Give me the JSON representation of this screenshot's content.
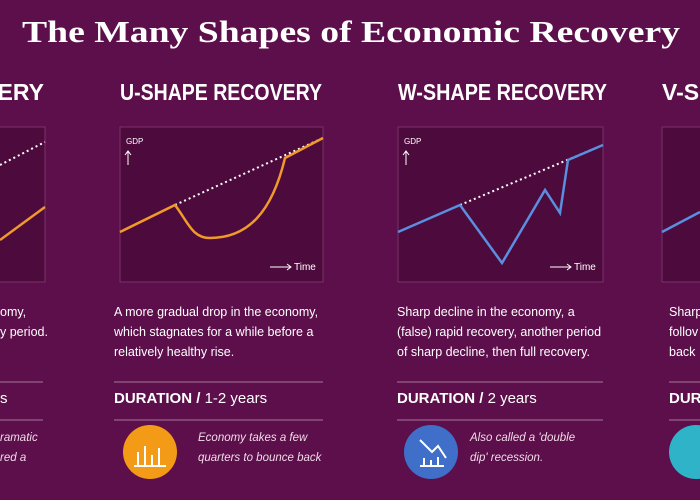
{
  "title": "The Many Shapes of Economic Recovery",
  "cards": [
    {
      "heading": "VERY",
      "description": [
        "omy,",
        "y period."
      ],
      "duration": "s",
      "note": [
        "ramatic",
        "red a"
      ]
    },
    {
      "heading": "U-SHAPE RECOVERY",
      "gdp": "GDP",
      "time": "Time",
      "description": [
        "A more gradual drop in the economy,",
        "which stagnates for a while before a",
        "relatively healthy rise."
      ],
      "duration_label": "DURATION /",
      "duration": "1-2 years",
      "note": [
        "Economy takes a few",
        "quarters to bounce back"
      ]
    },
    {
      "heading": "W-SHAPE RECOVERY",
      "gdp": "GDP",
      "time": "Time",
      "description": [
        "Sharp decline in the economy, a",
        "(false) rapid recovery, another period",
        "of sharp decline, then full recovery."
      ],
      "duration_label": "DURATION /",
      "duration": "2 years",
      "note": [
        "Also called a 'double",
        "dip' recession."
      ]
    },
    {
      "heading": "V-S",
      "description": [
        "Sharp",
        "follov",
        "back"
      ],
      "duration_label": "DURA"
    }
  ]
}
